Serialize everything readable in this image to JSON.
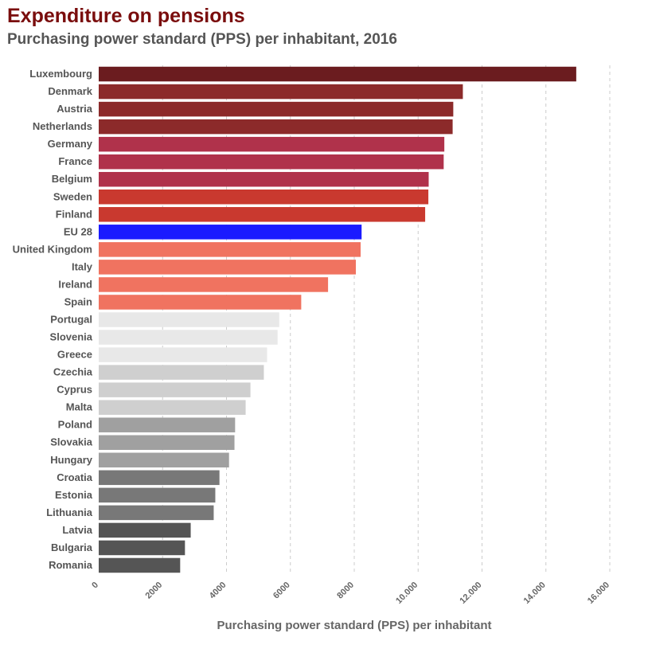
{
  "title": "Expenditure on pensions",
  "subtitle": "Purchasing power standard (PPS) per inhabitant, 2016",
  "chart_data": {
    "type": "bar",
    "orientation": "horizontal",
    "xlabel": "Purchasing power standard (PPS) per inhabitant",
    "ylabel": "",
    "xlim": [
      0,
      16000
    ],
    "ticks": [
      0,
      2000,
      4000,
      6000,
      8000,
      10000,
      12000,
      14000,
      16000
    ],
    "tick_labels": [
      "0",
      "2000",
      "4000",
      "6000",
      "8000",
      "10.000",
      "12.000",
      "14.000",
      "16.000"
    ],
    "grid": "vertical dashed",
    "categories": [
      "Luxembourg",
      "Denmark",
      "Austria",
      "Netherlands",
      "Germany",
      "France",
      "Belgium",
      "Sweden",
      "Finland",
      "EU 28",
      "United Kingdom",
      "Italy",
      "Ireland",
      "Spain",
      "Portugal",
      "Slovenia",
      "Greece",
      "Czechia",
      "Cyprus",
      "Malta",
      "Poland",
      "Slovakia",
      "Hungary",
      "Croatia",
      "Estonia",
      "Lithuania",
      "Latvia",
      "Bulgaria",
      "Romania"
    ],
    "values": [
      14950,
      11400,
      11100,
      11080,
      10820,
      10800,
      10330,
      10320,
      10220,
      8230,
      8200,
      8050,
      7180,
      6340,
      5650,
      5600,
      5270,
      5170,
      4750,
      4600,
      4270,
      4250,
      4080,
      3780,
      3650,
      3600,
      2880,
      2700,
      2550
    ],
    "colors": [
      "#6b1c1f",
      "#8c2a2a",
      "#8c2a2a",
      "#8c2a2a",
      "#b0324b",
      "#b0324b",
      "#b0324b",
      "#c9392f",
      "#c9392f",
      "#1a1aff",
      "#f07360",
      "#f07360",
      "#f07360",
      "#f07360",
      "#e8e8e8",
      "#e8e8e8",
      "#e8e8e8",
      "#cfcfcf",
      "#cfcfcf",
      "#cfcfcf",
      "#a0a0a0",
      "#a0a0a0",
      "#a0a0a0",
      "#787878",
      "#787878",
      "#787878",
      "#555555",
      "#555555",
      "#555555"
    ]
  }
}
